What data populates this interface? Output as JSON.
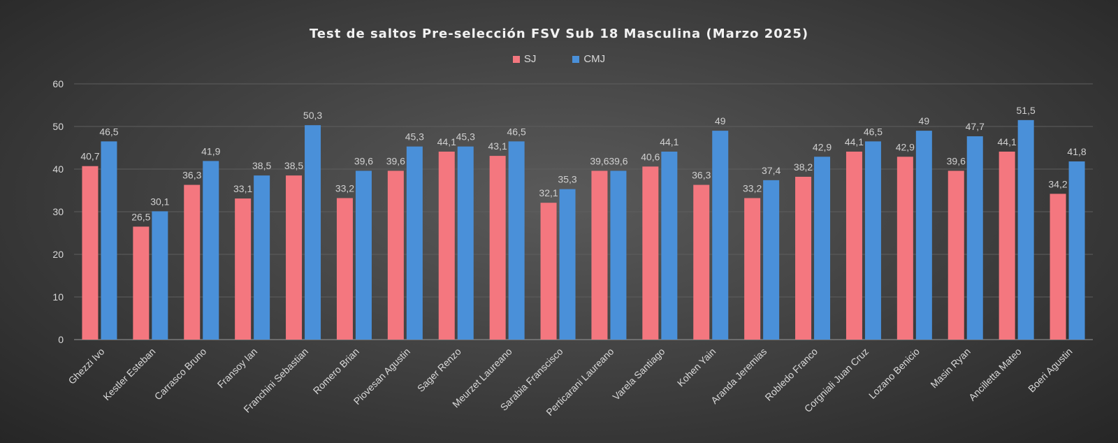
{
  "chart_data": {
    "type": "bar",
    "title": "Test de saltos Pre-selección FSV Sub 18 Masculina (Marzo 2025)",
    "xlabel": "",
    "ylabel": "",
    "ylim": [
      0,
      60
    ],
    "yticks": [
      0,
      10,
      20,
      30,
      40,
      50,
      60
    ],
    "grid": true,
    "legend_position": "top",
    "categories": [
      "Ghezzi Ivo",
      "Kestler Esteban",
      "Carrasco Bruno",
      "Fransoy Ian",
      "Franchini Sebastian",
      "Romero Brian",
      "Piovesan Agustin",
      "Sager Renzo",
      "Meurzet Laureano",
      "Sarabia Franscisco",
      "Perticarani Laureano",
      "Varela Santiago",
      "Kohen Yain",
      "Aranda Jeremias",
      "Robledo Franco",
      "Corgniali Juan Cruz",
      "Lozano Benicio",
      "Masin Ryan",
      "Ancilletta Mateo",
      "Boeri Agustin"
    ],
    "series": [
      {
        "name": "SJ",
        "color": "#f4777f",
        "values": [
          40.7,
          26.5,
          36.3,
          33.1,
          38.5,
          33.2,
          39.6,
          44.1,
          43.1,
          32.1,
          39.6,
          40.6,
          36.3,
          33.2,
          38.2,
          44.1,
          42.9,
          39.6,
          44.1,
          34.2
        ],
        "labels": [
          "40,7",
          "26,5",
          "36,3",
          "33,1",
          "38,5",
          "33,2",
          "39,6",
          "44,1",
          "43,1",
          "32,1",
          "39,6",
          "40,6",
          "36,3",
          "33,2",
          "38,2",
          "44,1",
          "42,9",
          "39,6",
          "44,1",
          "34,2"
        ]
      },
      {
        "name": "CMJ",
        "color": "#4a90d9",
        "values": [
          46.5,
          30.1,
          41.9,
          38.5,
          50.3,
          39.6,
          45.3,
          45.3,
          46.5,
          35.3,
          39.6,
          44.1,
          49,
          37.4,
          42.9,
          46.5,
          49,
          47.7,
          51.5,
          41.8
        ],
        "labels": [
          "46,5",
          "30,1",
          "41,9",
          "38,5",
          "50,3",
          "39,6",
          "45,3",
          "45,3",
          "46,5",
          "35,3",
          "39,6",
          "44,1",
          "49",
          "37,4",
          "42,9",
          "46,5",
          "49",
          "47,7",
          "51,5",
          "41,8"
        ]
      }
    ]
  }
}
